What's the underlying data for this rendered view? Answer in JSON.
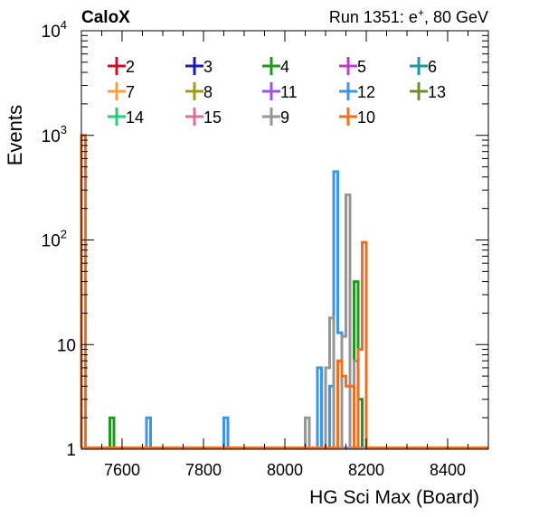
{
  "header": {
    "left": "CaloX",
    "right_prefix": "Run 1351: e",
    "right_sup": "+",
    "right_suffix": ", 80 GeV"
  },
  "chart_data": {
    "type": "histogram",
    "xlabel": "HG Sci Max (Board)",
    "ylabel": "Events",
    "xlim": [
      7500,
      8500
    ],
    "ylim": [
      1,
      10000
    ],
    "yscale": "log",
    "bin_width": 10,
    "xticks": [
      {
        "value": 7600,
        "label": "7600"
      },
      {
        "value": 7800,
        "label": "7800"
      },
      {
        "value": 8000,
        "label": "8000"
      },
      {
        "value": 8200,
        "label": "8200"
      },
      {
        "value": 8400,
        "label": "8400"
      }
    ],
    "yticks": [
      {
        "value": 1,
        "base": "1",
        "exp": ""
      },
      {
        "value": 10,
        "base": "10",
        "exp": ""
      },
      {
        "value": 100,
        "base": "10",
        "exp": "2"
      },
      {
        "value": 1000,
        "base": "10",
        "exp": "3"
      },
      {
        "value": 10000,
        "base": "10",
        "exp": "4"
      }
    ],
    "legend_placement": "top",
    "series": [
      {
        "name": "2",
        "color": "#c8102e",
        "bins": []
      },
      {
        "name": "3",
        "color": "#1a1ab4",
        "bins": []
      },
      {
        "name": "4",
        "color": "#1d9a1d",
        "bins": [
          [
            7570,
            2
          ],
          [
            8170,
            40
          ],
          [
            8180,
            3
          ]
        ]
      },
      {
        "name": "5",
        "color": "#c03cc8",
        "bins": []
      },
      {
        "name": "6",
        "color": "#1a9a9a",
        "bins": []
      },
      {
        "name": "7",
        "color": "#f5a040",
        "bins": []
      },
      {
        "name": "8",
        "color": "#a09a1a",
        "bins": []
      },
      {
        "name": "11",
        "color": "#a050e6",
        "bins": []
      },
      {
        "name": "12",
        "color": "#3c96e6",
        "bins": [
          [
            7660,
            2
          ],
          [
            7850,
            2
          ],
          [
            8080,
            6
          ],
          [
            8110,
            4
          ],
          [
            8120,
            450
          ],
          [
            8130,
            13
          ]
        ]
      },
      {
        "name": "13",
        "color": "#6e8c28",
        "bins": []
      },
      {
        "name": "14",
        "color": "#28c882",
        "bins": []
      },
      {
        "name": "15",
        "color": "#dc6e9a",
        "bins": []
      },
      {
        "name": "9",
        "color": "#969696",
        "bins": [
          [
            8050,
            2
          ],
          [
            8100,
            6
          ],
          [
            8110,
            18
          ],
          [
            8140,
            12
          ],
          [
            8150,
            270
          ],
          [
            8170,
            7
          ]
        ]
      },
      {
        "name": "10",
        "color": "#f06e1e",
        "bins": [
          [
            7500,
            1000
          ],
          [
            8130,
            7
          ],
          [
            8140,
            5
          ],
          [
            8150,
            4
          ],
          [
            8160,
            4
          ],
          [
            8180,
            9
          ],
          [
            8190,
            95
          ]
        ]
      }
    ]
  }
}
